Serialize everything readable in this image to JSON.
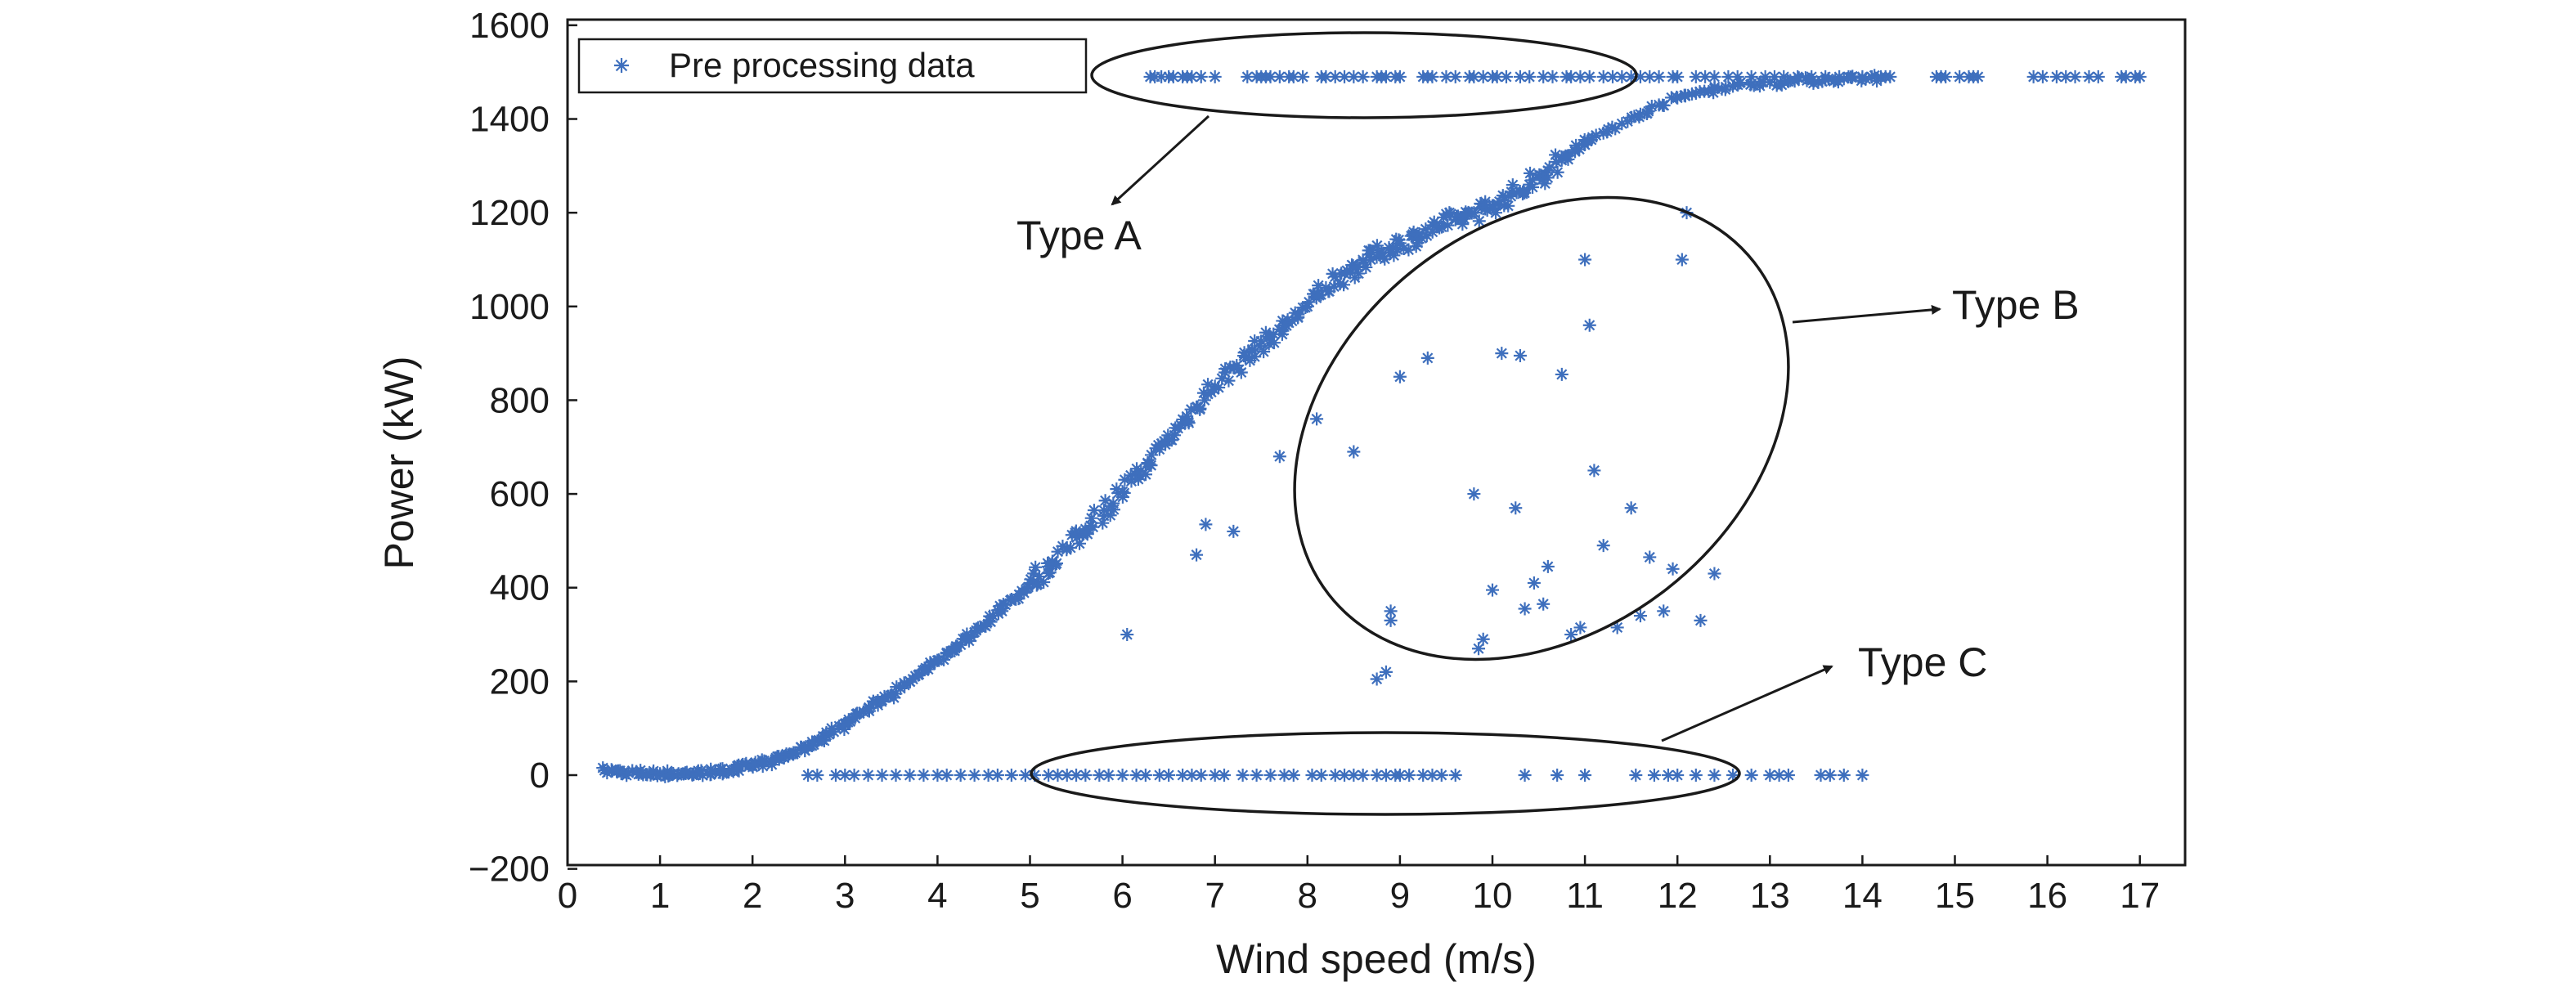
{
  "chart_data": {
    "type": "scatter",
    "xlabel": "Wind speed (m/s)",
    "ylabel": "Power (kW)",
    "xlim": [
      0,
      17.5
    ],
    "ylim": [
      -200,
      1600
    ],
    "x_ticks": [
      0,
      1,
      2,
      3,
      4,
      5,
      6,
      7,
      8,
      9,
      10,
      11,
      12,
      13,
      14,
      15,
      16,
      17
    ],
    "y_ticks": [
      -200,
      0,
      200,
      400,
      600,
      800,
      1000,
      1200,
      1400,
      1600
    ],
    "x_tick_labels": [
      "0",
      "1",
      "2",
      "3",
      "4",
      "5",
      "6",
      "7",
      "8",
      "9",
      "10",
      "11",
      "12",
      "13",
      "14",
      "15",
      "16",
      "17"
    ],
    "y_tick_labels": [
      "−200",
      "0",
      "200",
      "400",
      "600",
      "800",
      "1000",
      "1200",
      "1400",
      "1600"
    ],
    "grid": false,
    "legend": {
      "position": "top-left",
      "entries": [
        "Pre processing data"
      ]
    },
    "marker_color": "#3e6fbd",
    "series": [
      {
        "name": "Pre processing data",
        "marker": "asterisk",
        "power_curve": {
          "x": [
            0.4,
            0.6,
            0.8,
            1.0,
            1.2,
            1.4,
            1.6,
            1.8,
            2.0,
            2.2,
            2.4,
            2.6,
            2.8,
            3.0,
            3.2,
            3.4,
            3.6,
            3.8,
            4.0,
            4.2,
            4.4,
            4.6,
            4.8,
            5.0,
            5.2,
            5.4,
            5.6,
            5.8,
            6.0,
            6.2,
            6.4,
            6.6,
            6.8,
            7.0,
            7.2,
            7.4,
            7.6,
            7.8,
            8.0,
            8.2,
            8.4,
            8.6,
            8.8,
            9.0,
            9.2,
            9.4,
            9.6,
            9.8,
            10.0,
            10.2,
            10.4,
            10.6,
            10.8,
            11.0,
            11.2,
            11.4,
            11.6,
            11.8,
            12.0,
            12.2,
            12.4,
            12.6,
            12.8,
            13.0,
            13.2,
            13.4,
            13.6,
            13.8,
            14.0,
            14.2
          ],
          "y": [
            10,
            6,
            4,
            3,
            3,
            4,
            7,
            12,
            20,
            30,
            45,
            62,
            85,
            110,
            135,
            160,
            185,
            215,
            245,
            275,
            305,
            340,
            375,
            410,
            445,
            485,
            525,
            565,
            605,
            650,
            695,
            740,
            785,
            830,
            870,
            905,
            935,
            965,
            1000,
            1040,
            1070,
            1095,
            1115,
            1135,
            1150,
            1170,
            1185,
            1200,
            1215,
            1235,
            1260,
            1290,
            1320,
            1345,
            1370,
            1390,
            1410,
            1430,
            1445,
            1455,
            1465,
            1470,
            1475,
            1478,
            1480,
            1482,
            1484,
            1486,
            1487,
            1488
          ]
        },
        "type_a": {
          "y": 1490,
          "x": [
            6.3,
            6.35,
            6.42,
            6.5,
            6.55,
            6.65,
            6.7,
            6.75,
            6.85,
            7.0,
            7.35,
            7.45,
            7.5,
            7.55,
            7.6,
            7.7,
            7.8,
            7.85,
            7.95,
            8.15,
            8.2,
            8.3,
            8.4,
            8.5,
            8.6,
            8.75,
            8.8,
            8.85,
            8.95,
            9.0,
            9.25,
            9.3,
            9.35,
            9.5,
            9.6,
            9.75,
            9.8,
            9.9,
            10.0,
            10.05,
            10.15,
            10.3,
            10.4,
            10.55,
            10.65,
            10.8,
            10.85,
            10.95,
            11.05,
            11.2,
            11.3,
            11.4,
            11.5,
            11.6,
            11.7,
            11.8,
            11.95,
            12.0,
            12.2,
            12.3,
            12.4,
            12.55,
            12.65,
            12.8,
            12.95,
            13.05,
            13.15,
            13.3,
            13.45,
            13.6,
            13.75,
            13.85,
            14.0,
            14.1,
            14.2,
            14.25,
            14.3,
            14.8,
            14.85,
            14.9,
            15.05,
            15.15,
            15.2,
            15.25,
            15.85,
            15.95,
            16.1,
            16.2,
            16.3,
            16.45,
            16.55,
            16.8,
            16.85,
            16.95,
            17.0
          ]
        },
        "type_b": {
          "x": [
            6.05,
            7.7,
            8.1,
            8.5,
            8.75,
            8.85,
            8.9,
            8.9,
            9.0,
            9.3,
            9.8,
            9.85,
            9.9,
            10.0,
            10.1,
            10.25,
            10.3,
            10.35,
            10.45,
            10.55,
            10.6,
            10.75,
            10.85,
            10.95,
            11.0,
            11.05,
            11.1,
            11.2,
            11.35,
            11.5,
            11.6,
            11.7,
            11.85,
            11.95,
            12.05,
            12.1,
            12.25,
            12.4,
            6.8,
            6.9,
            7.2
          ],
          "y": [
            300,
            680,
            760,
            690,
            205,
            220,
            350,
            330,
            850,
            890,
            600,
            270,
            290,
            395,
            900,
            570,
            895,
            355,
            410,
            365,
            445,
            855,
            300,
            315,
            1100,
            960,
            650,
            490,
            315,
            570,
            340,
            465,
            350,
            440,
            1100,
            1200,
            330,
            430,
            470,
            535,
            520
          ]
        },
        "type_c": {
          "y": 0,
          "x": [
            2.6,
            2.7,
            2.9,
            3.0,
            3.1,
            3.25,
            3.4,
            3.55,
            3.7,
            3.85,
            4.0,
            4.1,
            4.25,
            4.4,
            4.55,
            4.65,
            4.8,
            4.95,
            5.05,
            5.2,
            5.3,
            5.4,
            5.5,
            5.6,
            5.75,
            5.85,
            6.0,
            6.15,
            6.25,
            6.4,
            6.5,
            6.65,
            6.75,
            6.85,
            7.0,
            7.1,
            7.3,
            7.45,
            7.6,
            7.75,
            7.85,
            8.05,
            8.15,
            8.3,
            8.4,
            8.5,
            8.6,
            8.75,
            8.85,
            8.95,
            9.0,
            9.1,
            9.25,
            9.35,
            9.45,
            9.6,
            10.35,
            10.7,
            11.0,
            11.55,
            11.75,
            11.9,
            12.0,
            12.2,
            12.4,
            12.6,
            12.8,
            13.0,
            13.1,
            13.2,
            13.55,
            13.65,
            13.8,
            14.0
          ]
        }
      }
    ],
    "annotations": [
      {
        "label": "Type A"
      },
      {
        "label": "Type B"
      },
      {
        "label": "Type C"
      }
    ]
  }
}
